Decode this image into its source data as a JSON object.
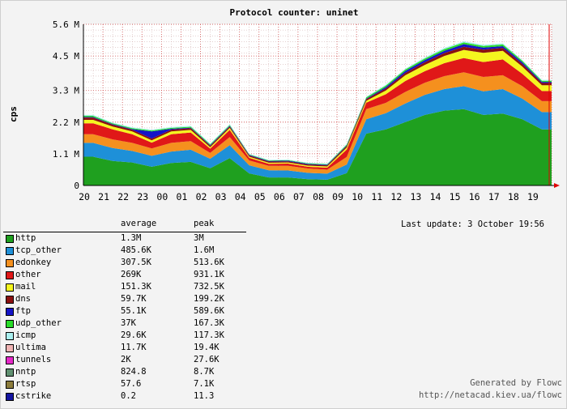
{
  "chart_data": {
    "type": "area",
    "title": "Protocol counter: uninet",
    "ylabel": "cps",
    "ylim": [
      0,
      5600000
    ],
    "y_ticks": [
      {
        "value": 0,
        "label": "0"
      },
      {
        "value": 1100000,
        "label": "1.1 M"
      },
      {
        "value": 2200000,
        "label": "2.2 M"
      },
      {
        "value": 3300000,
        "label": "3.3 M"
      },
      {
        "value": 4500000,
        "label": "4.5 M"
      },
      {
        "value": 5600000,
        "label": "5.6 M"
      }
    ],
    "x_tick_labels": [
      "20",
      "21",
      "22",
      "23",
      "00",
      "01",
      "02",
      "03",
      "04",
      "05",
      "06",
      "07",
      "08",
      "09",
      "10",
      "11",
      "12",
      "13",
      "14",
      "15",
      "16",
      "17",
      "18",
      "19"
    ],
    "x_hours": [
      20,
      21,
      22,
      23,
      24,
      25,
      26,
      27,
      28,
      29,
      30,
      31,
      32,
      33,
      34,
      35,
      36,
      37,
      38,
      39,
      40,
      41,
      42,
      43
    ],
    "x_range": [
      20,
      44
    ],
    "series": [
      {
        "name": "http",
        "color": "#1fa01f",
        "values": [
          1000000,
          850000,
          800000,
          650000,
          780000,
          820000,
          600000,
          950000,
          420000,
          280000,
          280000,
          220000,
          200000,
          430000,
          1800000,
          1950000,
          2200000,
          2450000,
          2600000,
          2650000,
          2450000,
          2500000,
          2300000,
          1950000
        ]
      },
      {
        "name": "tcp_other",
        "color": "#1e90d8",
        "values": [
          480000,
          450000,
          400000,
          380000,
          400000,
          420000,
          330000,
          450000,
          280000,
          250000,
          240000,
          220000,
          210000,
          300000,
          500000,
          560000,
          650000,
          700000,
          750000,
          800000,
          820000,
          850000,
          720000,
          600000
        ]
      },
      {
        "name": "edonkey",
        "color": "#f5901e",
        "values": [
          300000,
          300000,
          280000,
          260000,
          300000,
          300000,
          200000,
          280000,
          170000,
          150000,
          160000,
          150000,
          140000,
          260000,
          350000,
          360000,
          400000,
          420000,
          450000,
          480000,
          500000,
          480000,
          430000,
          380000
        ]
      },
      {
        "name": "other",
        "color": "#e01818",
        "values": [
          380000,
          350000,
          300000,
          200000,
          300000,
          300000,
          150000,
          250000,
          90000,
          70000,
          80000,
          60000,
          70000,
          260000,
          230000,
          300000,
          380000,
          400000,
          450000,
          500000,
          520000,
          550000,
          430000,
          350000
        ]
      },
      {
        "name": "mail",
        "color": "#f5f51e",
        "values": [
          120000,
          100000,
          100000,
          80000,
          100000,
          90000,
          50000,
          70000,
          40000,
          40000,
          40000,
          40000,
          40000,
          70000,
          60000,
          130000,
          200000,
          220000,
          250000,
          280000,
          320000,
          300000,
          250000,
          200000
        ]
      },
      {
        "name": "dns",
        "color": "#8b1010",
        "values": [
          80000,
          60000,
          60000,
          60000,
          60000,
          60000,
          50000,
          50000,
          40000,
          40000,
          40000,
          40000,
          40000,
          50000,
          60000,
          70000,
          80000,
          90000,
          100000,
          110000,
          110000,
          100000,
          90000,
          80000
        ]
      },
      {
        "name": "ftp",
        "color": "#1414c8",
        "values": [
          20000,
          20000,
          20000,
          250000,
          30000,
          20000,
          20000,
          20000,
          20000,
          20000,
          20000,
          20000,
          20000,
          20000,
          20000,
          50000,
          70000,
          80000,
          80000,
          90000,
          70000,
          60000,
          60000,
          40000
        ]
      },
      {
        "name": "udp_other",
        "color": "#28dc28",
        "values": [
          40000,
          30000,
          30000,
          30000,
          30000,
          30000,
          30000,
          30000,
          20000,
          20000,
          20000,
          20000,
          20000,
          30000,
          40000,
          50000,
          50000,
          50000,
          60000,
          60000,
          60000,
          60000,
          50000,
          40000
        ]
      },
      {
        "name": "icmp",
        "color": "#aaf0f0",
        "values": [
          30000,
          30000,
          30000,
          30000,
          30000,
          30000,
          30000,
          30000,
          20000,
          20000,
          20000,
          20000,
          20000,
          30000,
          30000,
          30000,
          30000,
          40000,
          40000,
          40000,
          40000,
          40000,
          30000,
          30000
        ]
      }
    ]
  },
  "legend": {
    "col_average": "average",
    "col_peak": "peak",
    "rows": [
      {
        "name": "http",
        "average": "1.3M",
        "peak": "3M",
        "color": "#1fa01f"
      },
      {
        "name": "tcp_other",
        "average": "485.6K",
        "peak": "1.6M",
        "color": "#1e90d8"
      },
      {
        "name": "edonkey",
        "average": "307.5K",
        "peak": "513.6K",
        "color": "#f5901e"
      },
      {
        "name": "other",
        "average": "269K",
        "peak": "931.1K",
        "color": "#e01818"
      },
      {
        "name": "mail",
        "average": "151.3K",
        "peak": "732.5K",
        "color": "#f5f51e"
      },
      {
        "name": "dns",
        "average": "59.7K",
        "peak": "199.2K",
        "color": "#8b1010"
      },
      {
        "name": "ftp",
        "average": "55.1K",
        "peak": "589.6K",
        "color": "#1414c8"
      },
      {
        "name": "udp_other",
        "average": "37K",
        "peak": "167.3K",
        "color": "#28dc28"
      },
      {
        "name": "icmp",
        "average": "29.6K",
        "peak": "117.3K",
        "color": "#aaf0f0"
      },
      {
        "name": "ultima",
        "average": "11.7K",
        "peak": "19.4K",
        "color": "#f0b4b4"
      },
      {
        "name": "tunnels",
        "average": "2K",
        "peak": "27.6K",
        "color": "#e628c8"
      },
      {
        "name": "nntp",
        "average": "824.8",
        "peak": "8.7K",
        "color": "#609070"
      },
      {
        "name": "rtsp",
        "average": "57.6",
        "peak": "7.1K",
        "color": "#8c7c3c"
      },
      {
        "name": "cstrike",
        "average": "0.2",
        "peak": "11.3",
        "color": "#1414a0"
      }
    ]
  },
  "last_update": "Last update: 3 October 19:56",
  "generated_by": "Generated by Flowc",
  "generated_url": "http://netacad.kiev.ua/flowc"
}
